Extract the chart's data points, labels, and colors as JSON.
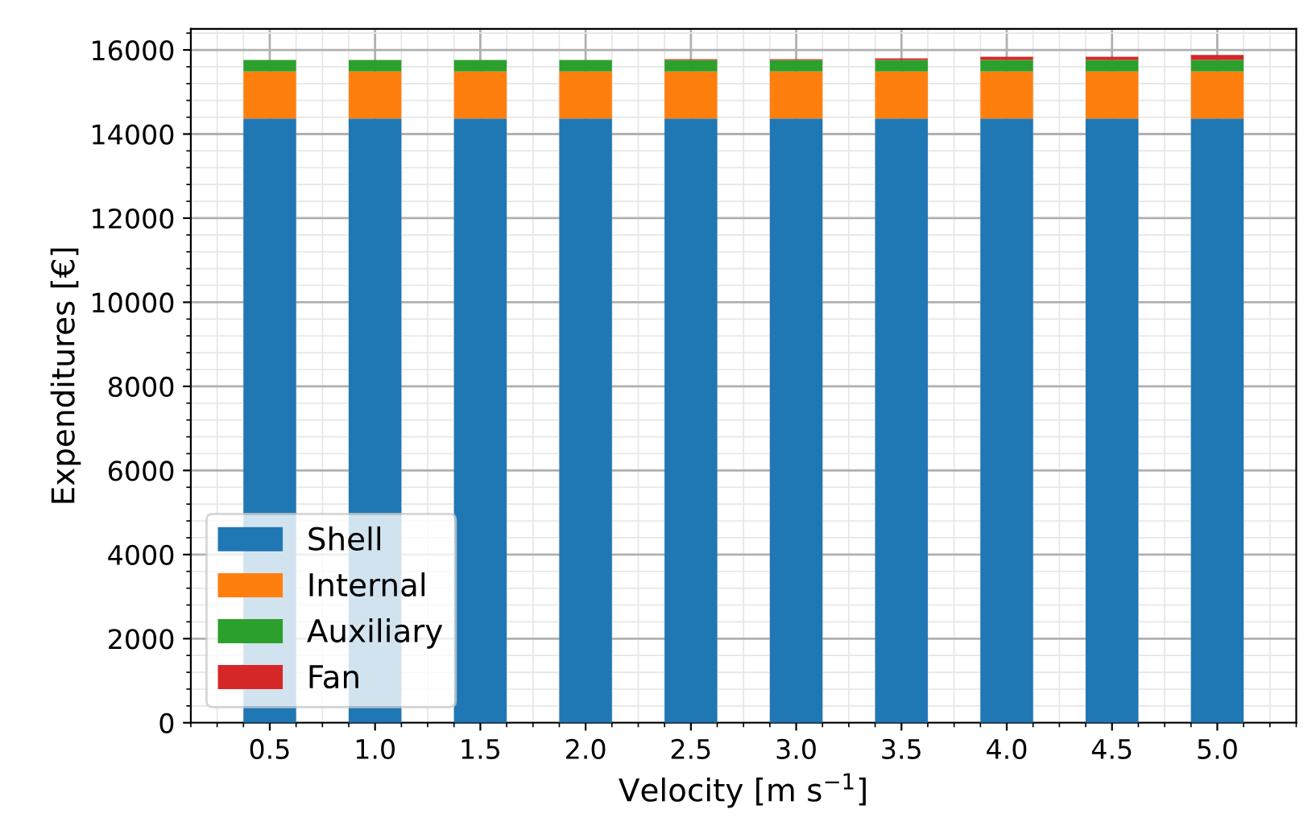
{
  "chart_data": {
    "type": "bar",
    "stacked": true,
    "xlabel": "Velocity [m s$^{−1}$]",
    "ylabel": "Expenditures [€]",
    "categories": [
      "0.5",
      "1.0",
      "1.5",
      "2.0",
      "2.5",
      "3.0",
      "3.5",
      "4.0",
      "4.5",
      "5.0"
    ],
    "series": [
      {
        "name": "Shell",
        "color": "#1f77b4",
        "values": [
          14370,
          14370,
          14370,
          14370,
          14370,
          14370,
          14370,
          14370,
          14370,
          14370
        ]
      },
      {
        "name": "Internal",
        "color": "#ff7f0e",
        "values": [
          1120,
          1120,
          1120,
          1120,
          1120,
          1120,
          1120,
          1120,
          1120,
          1120
        ]
      },
      {
        "name": "Auxiliary",
        "color": "#2ca02c",
        "values": [
          270,
          270,
          270,
          270,
          270,
          270,
          270,
          270,
          270,
          270
        ]
      },
      {
        "name": "Fan",
        "color": "#d62728",
        "values": [
          null,
          null,
          null,
          null,
          20,
          20,
          40,
          80,
          80,
          120
        ]
      }
    ],
    "ylim": [
      0,
      16500
    ],
    "yticks": [
      0,
      2000,
      4000,
      6000,
      8000,
      10000,
      12000,
      14000,
      16000
    ],
    "grid": true,
    "legend": "bottom left"
  }
}
